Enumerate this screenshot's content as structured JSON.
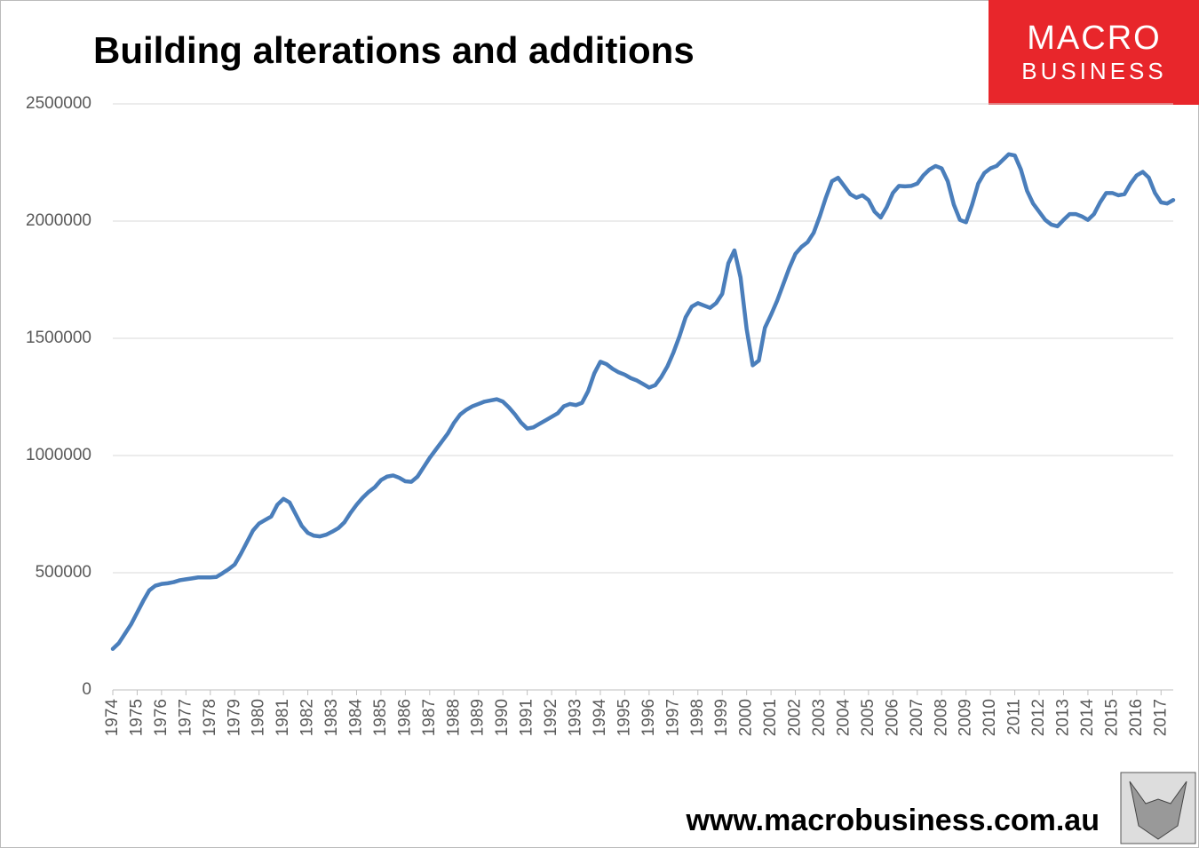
{
  "chart_data": {
    "type": "line",
    "title": "Building alterations and additions",
    "logo": {
      "top": "MACRO",
      "bottom": "BUSINESS"
    },
    "footer": "www.macrobusiness.com.au",
    "color": "#4a7ebb",
    "grid": true,
    "ylim": [
      0,
      2500000
    ],
    "yticks": [
      0,
      500000,
      1000000,
      1500000,
      2000000,
      2500000
    ],
    "categories": [
      "1974",
      null,
      null,
      null,
      "1975",
      null,
      null,
      null,
      "1976",
      null,
      null,
      null,
      "1977",
      null,
      null,
      null,
      "1978",
      null,
      null,
      null,
      "1979",
      null,
      null,
      null,
      "1980",
      null,
      null,
      null,
      "1981",
      null,
      null,
      null,
      "1982",
      null,
      null,
      null,
      "1983",
      null,
      null,
      null,
      "1984",
      null,
      null,
      null,
      "1985",
      null,
      null,
      null,
      "1986",
      null,
      null,
      null,
      "1987",
      null,
      null,
      null,
      "1988",
      null,
      null,
      null,
      "1989",
      null,
      null,
      null,
      "1990",
      null,
      null,
      null,
      "1991",
      null,
      null,
      null,
      "1992",
      null,
      null,
      null,
      "1993",
      null,
      null,
      null,
      "1994",
      null,
      null,
      null,
      "1995",
      null,
      null,
      null,
      "1996",
      null,
      null,
      null,
      "1997",
      null,
      null,
      null,
      "1998",
      null,
      null,
      null,
      "1999",
      null,
      null,
      null,
      "2000",
      null,
      null,
      null,
      "2001",
      null,
      null,
      null,
      "2002",
      null,
      null,
      null,
      "2003",
      null,
      null,
      null,
      "2004",
      null,
      null,
      null,
      "2005",
      null,
      null,
      null,
      "2006",
      null,
      null,
      null,
      "2007",
      null,
      null,
      null,
      "2008",
      null,
      null,
      null,
      "2009",
      null,
      null,
      null,
      "2010",
      null,
      null,
      null,
      "2011",
      null,
      null,
      null,
      "2012",
      null,
      null,
      null,
      "2013",
      null,
      null,
      null,
      "2014",
      null,
      null,
      null,
      "2015",
      null,
      null,
      null,
      "2016",
      null,
      null,
      null,
      "2017",
      null,
      null
    ],
    "values": [
      175000,
      200000,
      240000,
      280000,
      330000,
      380000,
      425000,
      445000,
      452000,
      455000,
      460000,
      468000,
      472000,
      476000,
      480000,
      480000,
      480000,
      482000,
      498000,
      515000,
      535000,
      580000,
      630000,
      680000,
      710000,
      725000,
      740000,
      790000,
      815000,
      800000,
      750000,
      700000,
      670000,
      658000,
      655000,
      662000,
      675000,
      690000,
      715000,
      755000,
      790000,
      820000,
      845000,
      865000,
      895000,
      910000,
      915000,
      905000,
      890000,
      888000,
      910000,
      950000,
      990000,
      1025000,
      1060000,
      1095000,
      1140000,
      1175000,
      1195000,
      1210000,
      1220000,
      1230000,
      1235000,
      1240000,
      1230000,
      1205000,
      1175000,
      1140000,
      1115000,
      1120000,
      1135000,
      1150000,
      1165000,
      1180000,
      1210000,
      1220000,
      1215000,
      1225000,
      1275000,
      1350000,
      1400000,
      1390000,
      1370000,
      1355000,
      1345000,
      1330000,
      1320000,
      1305000,
      1290000,
      1300000,
      1335000,
      1380000,
      1440000,
      1510000,
      1590000,
      1635000,
      1650000,
      1640000,
      1630000,
      1650000,
      1690000,
      1820000,
      1875000,
      1760000,
      1540000,
      1385000,
      1405000,
      1545000,
      1600000,
      1660000,
      1730000,
      1800000,
      1860000,
      1890000,
      1910000,
      1950000,
      2020000,
      2100000,
      2170000,
      2185000,
      2150000,
      2115000,
      2100000,
      2110000,
      2090000,
      2040000,
      2015000,
      2060000,
      2120000,
      2150000,
      2148000,
      2150000,
      2160000,
      2195000,
      2220000,
      2235000,
      2225000,
      2170000,
      2070000,
      2005000,
      1995000,
      2070000,
      2160000,
      2205000,
      2225000,
      2235000,
      2260000,
      2285000,
      2280000,
      2220000,
      2130000,
      2075000,
      2040000,
      2005000,
      1985000,
      1978000,
      2005000,
      2030000,
      2030000,
      2020000,
      2005000,
      2030000,
      2080000,
      2120000,
      2120000,
      2110000,
      2115000,
      2160000,
      2195000,
      2210000,
      2185000,
      2120000,
      2080000,
      2075000,
      2090000
    ]
  }
}
